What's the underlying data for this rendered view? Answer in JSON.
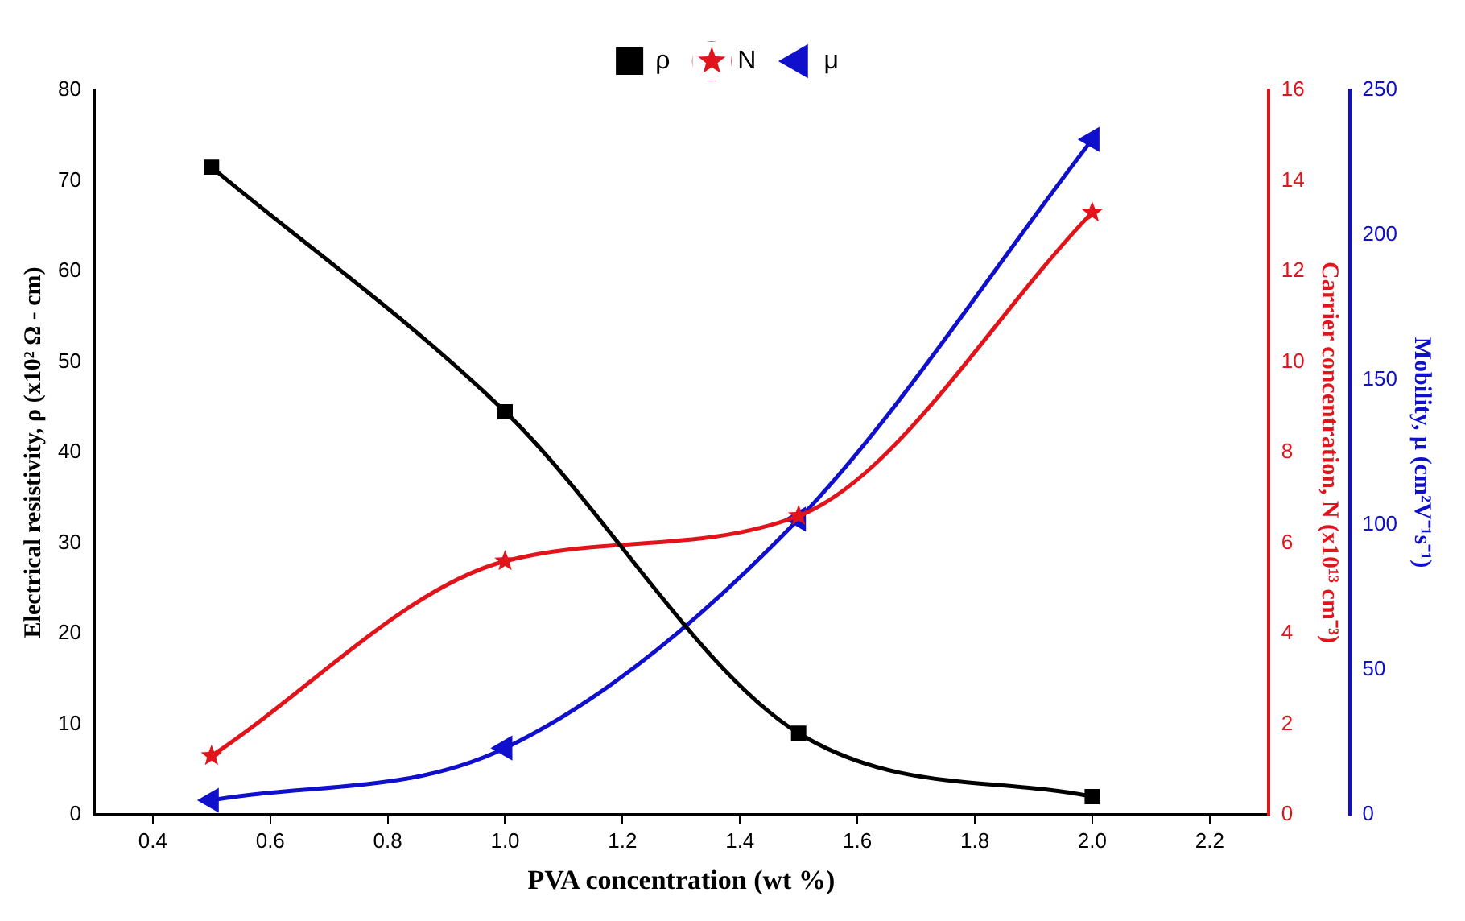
{
  "chart_data": {
    "type": "line",
    "xlabel": "PVA concentration (wt %)",
    "ylabel": "Electrical resistivity, ρ (x10² Ω - cm)",
    "y2label": "Carrier concentration, N (x10¹³ cm⁻³)",
    "y3label": "Mobility, μ (cm²V⁻¹s⁻¹)",
    "x": [
      0.5,
      1.0,
      1.5,
      2.0
    ],
    "series": [
      {
        "name": "ρ",
        "color": "#000000",
        "values": [
          71.5,
          44.5,
          9,
          2
        ],
        "marker": "square"
      },
      {
        "name": "N",
        "color": "#e0141a",
        "values": [
          1.3,
          5.6,
          6.6,
          13.3
        ],
        "axis": "y2",
        "marker": "star"
      },
      {
        "name": "μ",
        "color": "#1010cc",
        "values": [
          5,
          23,
          102,
          233
        ],
        "axis": "y3",
        "marker": "triangle"
      }
    ],
    "xlim": [
      0.3,
      2.3
    ],
    "xticks": [
      {
        "value": 0.4,
        "label": "0.4"
      },
      {
        "value": 0.6,
        "label": "0.6"
      },
      {
        "value": 0.8,
        "label": "0.8"
      },
      {
        "value": 1.0,
        "label": "1.0"
      },
      {
        "value": 1.2,
        "label": "1.2"
      },
      {
        "value": 1.4,
        "label": "1.4"
      },
      {
        "value": 1.6,
        "label": "1.6"
      },
      {
        "value": 1.8,
        "label": "1.8"
      },
      {
        "value": 2.0,
        "label": "2.0"
      },
      {
        "value": 2.2,
        "label": "2.2"
      }
    ],
    "ylim": [
      0,
      80
    ],
    "yticks": [
      0,
      10,
      20,
      30,
      40,
      50,
      60,
      70,
      80
    ],
    "y2lim": [
      0,
      16
    ],
    "y2ticks": [
      0,
      2,
      4,
      6,
      8,
      10,
      12,
      14,
      16
    ],
    "y3lim": [
      0,
      250
    ],
    "y3ticks": [
      0,
      50,
      100,
      150,
      200,
      250
    ],
    "grid": false,
    "legend": "top",
    "line_style": "solid"
  }
}
